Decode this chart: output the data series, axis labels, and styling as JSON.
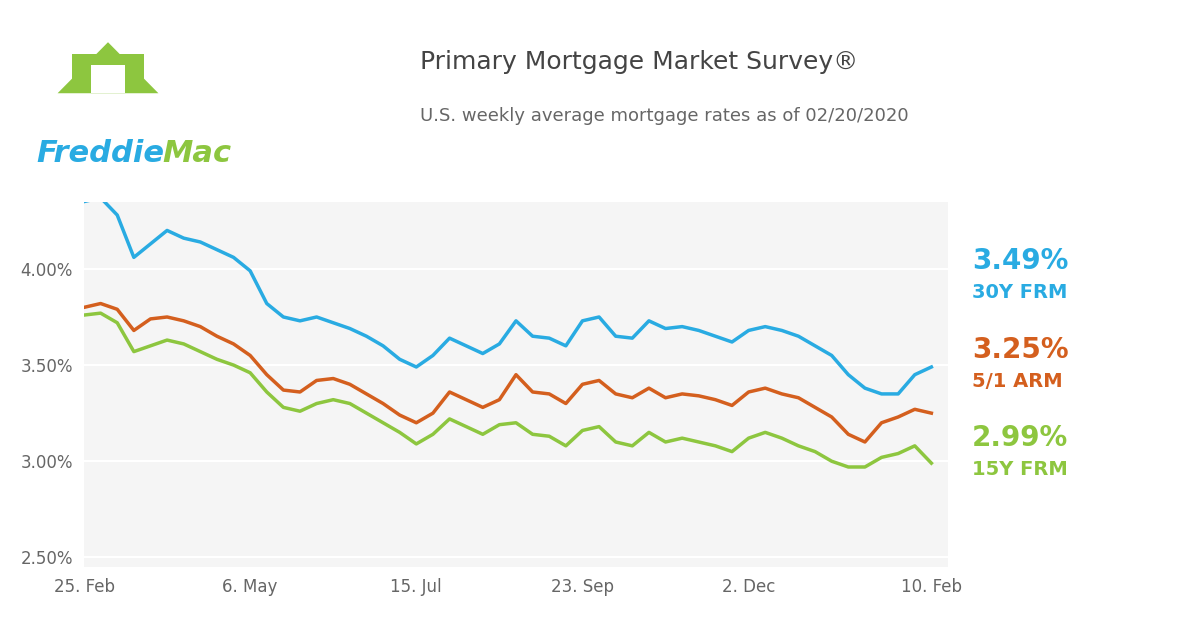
{
  "title": "Primary Mortgage Market Survey®",
  "subtitle": "U.S. weekly average mortgage rates as of 02/20/2020",
  "title_color": "#444444",
  "subtitle_color": "#666666",
  "bg_color": "#ffffff",
  "plot_bg_color": "#f5f5f5",
  "grid_color": "#ffffff",
  "line_30y_color": "#29abe2",
  "line_5y_color": "#d45f1e",
  "line_15y_color": "#8dc63f",
  "label_30y_value": "3.49%",
  "label_30y_name": "30Y FRM",
  "label_5y_value": "3.25%",
  "label_5y_name": "5/1 ARM",
  "label_15y_value": "2.99%",
  "label_15y_name": "15Y FRM",
  "xtick_labels": [
    "25. Feb",
    "6. May",
    "15. Jul",
    "23. Sep",
    "2. Dec",
    "10. Feb"
  ],
  "ytick_labels": [
    "2.50%",
    "3.00%",
    "3.50%",
    "4.00%"
  ],
  "ylim": [
    2.45,
    4.35
  ],
  "xlim": [
    0,
    52
  ],
  "freddie_blue": "#29abe2",
  "freddie_green": "#8dc63f",
  "freddie_dark": "#003F72",
  "data_30y": [
    4.35,
    4.37,
    4.28,
    4.06,
    4.13,
    4.2,
    4.16,
    4.14,
    4.1,
    4.06,
    3.99,
    3.82,
    3.75,
    3.73,
    3.75,
    3.72,
    3.69,
    3.65,
    3.6,
    3.53,
    3.49,
    3.55,
    3.64,
    3.6,
    3.56,
    3.61,
    3.73,
    3.65,
    3.64,
    3.6,
    3.73,
    3.75,
    3.65,
    3.64,
    3.73,
    3.69,
    3.7,
    3.68,
    3.65,
    3.62,
    3.68,
    3.7,
    3.68,
    3.65,
    3.6,
    3.55,
    3.45,
    3.38,
    3.35,
    3.35,
    3.45,
    3.49
  ],
  "data_5y": [
    3.8,
    3.82,
    3.79,
    3.68,
    3.74,
    3.75,
    3.73,
    3.7,
    3.65,
    3.61,
    3.55,
    3.45,
    3.37,
    3.36,
    3.42,
    3.43,
    3.4,
    3.35,
    3.3,
    3.24,
    3.2,
    3.25,
    3.36,
    3.32,
    3.28,
    3.32,
    3.45,
    3.36,
    3.35,
    3.3,
    3.4,
    3.42,
    3.35,
    3.33,
    3.38,
    3.33,
    3.35,
    3.34,
    3.32,
    3.29,
    3.36,
    3.38,
    3.35,
    3.33,
    3.28,
    3.23,
    3.14,
    3.1,
    3.2,
    3.23,
    3.27,
    3.25
  ],
  "data_15y": [
    3.76,
    3.77,
    3.72,
    3.57,
    3.6,
    3.63,
    3.61,
    3.57,
    3.53,
    3.5,
    3.46,
    3.36,
    3.28,
    3.26,
    3.3,
    3.32,
    3.3,
    3.25,
    3.2,
    3.15,
    3.09,
    3.14,
    3.22,
    3.18,
    3.14,
    3.19,
    3.2,
    3.14,
    3.13,
    3.08,
    3.16,
    3.18,
    3.1,
    3.08,
    3.15,
    3.1,
    3.12,
    3.1,
    3.08,
    3.05,
    3.12,
    3.15,
    3.12,
    3.08,
    3.05,
    3.0,
    2.97,
    2.97,
    3.02,
    3.04,
    3.08,
    2.99
  ],
  "xtick_positions": [
    0,
    10,
    20,
    30,
    40,
    51
  ]
}
